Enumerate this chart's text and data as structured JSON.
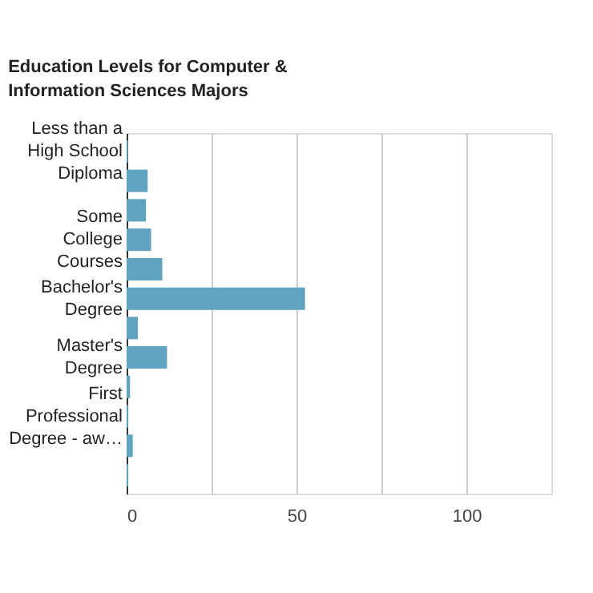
{
  "chart_data": {
    "type": "bar",
    "orientation": "horizontal",
    "title": "Education Levels for Computer & Information Sciences Majors",
    "categories": [
      "Less than a High School Diploma",
      null,
      null,
      "Some College Courses",
      null,
      "Bachelor's Degree",
      null,
      "Master's Degree",
      null,
      "First Professional Degree - aw…",
      null,
      null
    ],
    "values": [
      0.4,
      6.2,
      5.7,
      7.2,
      10.5,
      52.5,
      3.3,
      11.9,
      1.0,
      0.5,
      1.8,
      0.5
    ],
    "color": "#5fa3c0",
    "xlim": [
      0,
      125
    ],
    "xticks": [
      0,
      {
        "value": 25,
        "label": null
      },
      50,
      {
        "value": 75,
        "label": null
      },
      100
    ],
    "grid": true
  }
}
